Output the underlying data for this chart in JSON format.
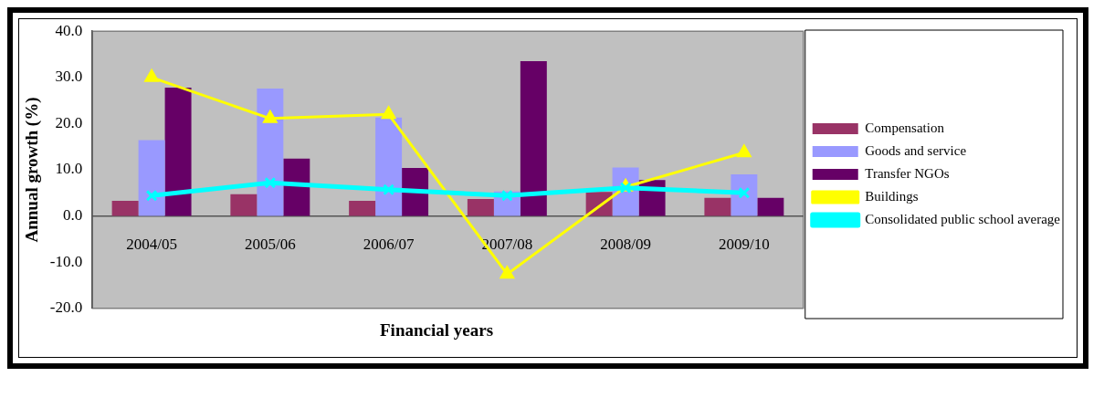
{
  "chart_data": {
    "type": "bar",
    "xlabel": "Financial years",
    "ylabel": "Annual growth (%)",
    "categories": [
      "2004/05",
      "2005/06",
      "2006/07",
      "2007/08",
      "2008/09",
      "2009/10"
    ],
    "series": [
      {
        "name": "Compensation",
        "color": "#993366",
        "values": [
          3.3,
          4.7,
          3.3,
          3.7,
          5.2,
          3.9
        ]
      },
      {
        "name": "Goods and service",
        "color": "#9999ff",
        "values": [
          16.4,
          27.6,
          21.3,
          5.3,
          10.5,
          9.0
        ]
      },
      {
        "name": "Transfer NGOs",
        "color": "#660066",
        "values": [
          27.8,
          12.4,
          10.4,
          33.5,
          7.8,
          3.9
        ]
      },
      {
        "name": "Buildings",
        "type": "line",
        "marker": "triangle",
        "color": "#ffff00",
        "values": [
          30.0,
          21.1,
          22.0,
          -12.6,
          6.3,
          13.7
        ]
      },
      {
        "name": "Consolidated public school average",
        "type": "line",
        "marker": "cross",
        "color": "#00ffff",
        "values": [
          4.4,
          7.2,
          5.7,
          4.4,
          6.1,
          5.0
        ]
      }
    ],
    "ylim": [
      -20,
      40
    ],
    "yticks": [
      {
        "value": -20,
        "label": "-20.0"
      },
      {
        "value": -10,
        "label": "-10.0"
      },
      {
        "value": 0,
        "label": "0.0"
      },
      {
        "value": 10,
        "label": "10.0"
      },
      {
        "value": 20,
        "label": "20.0"
      },
      {
        "value": 30,
        "label": "30.0"
      },
      {
        "value": 40,
        "label": "40.0"
      }
    ],
    "grid": false,
    "legend": "right"
  }
}
